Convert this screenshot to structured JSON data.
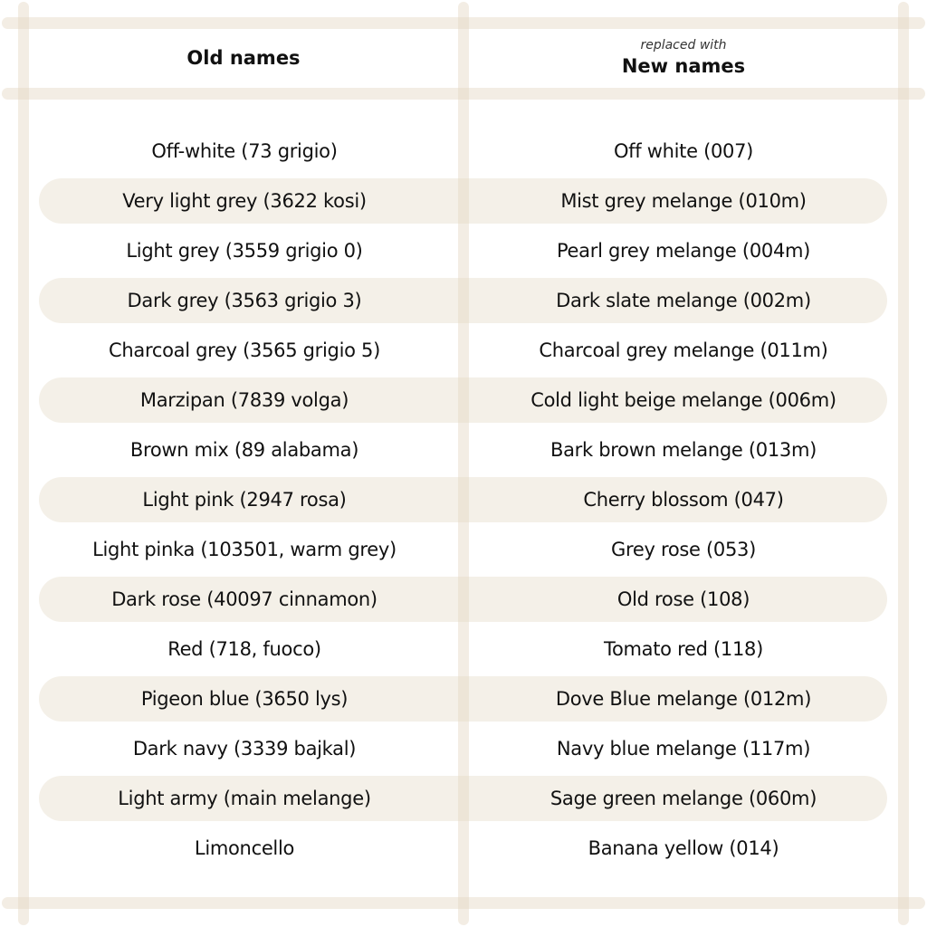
{
  "header": {
    "old": "Old names",
    "new_subtitle": "replaced with",
    "new": "New names"
  },
  "colors": {
    "grid": "#f3ede4",
    "stripe": "#f4f0e8"
  },
  "rows": [
    {
      "old": "Off-white (73 grigio)",
      "new": "Off white (007)"
    },
    {
      "old": "Very light grey (3622 kosi)",
      "new": "Mist grey melange (010m)"
    },
    {
      "old": "Light grey (3559 grigio 0)",
      "new": "Pearl grey melange (004m)"
    },
    {
      "old": "Dark grey (3563 grigio 3)",
      "new": "Dark slate melange (002m)"
    },
    {
      "old": "Charcoal grey (3565 grigio 5)",
      "new": "Charcoal grey melange (011m)"
    },
    {
      "old": "Marzipan (7839 volga)",
      "new": "Cold light beige melange (006m)"
    },
    {
      "old": "Brown mix (89 alabama)",
      "new": "Bark brown melange (013m)"
    },
    {
      "old": "Light pink (2947 rosa)",
      "new": "Cherry blossom (047)"
    },
    {
      "old": "Light pinka (103501, warm grey)",
      "new": "Grey rose (053)"
    },
    {
      "old": "Dark rose (40097 cinnamon)",
      "new": "Old rose (108)"
    },
    {
      "old": "Red (718, fuoco)",
      "new": "Tomato red (118)"
    },
    {
      "old": "Pigeon blue (3650 lys)",
      "new": "Dove Blue melange (012m)"
    },
    {
      "old": "Dark navy (3339 bajkal)",
      "new": "Navy blue melange (117m)"
    },
    {
      "old": "Light army (main melange)",
      "new": "Sage green melange (060m)"
    },
    {
      "old": "Limoncello",
      "new": "Banana yellow (014)"
    }
  ]
}
